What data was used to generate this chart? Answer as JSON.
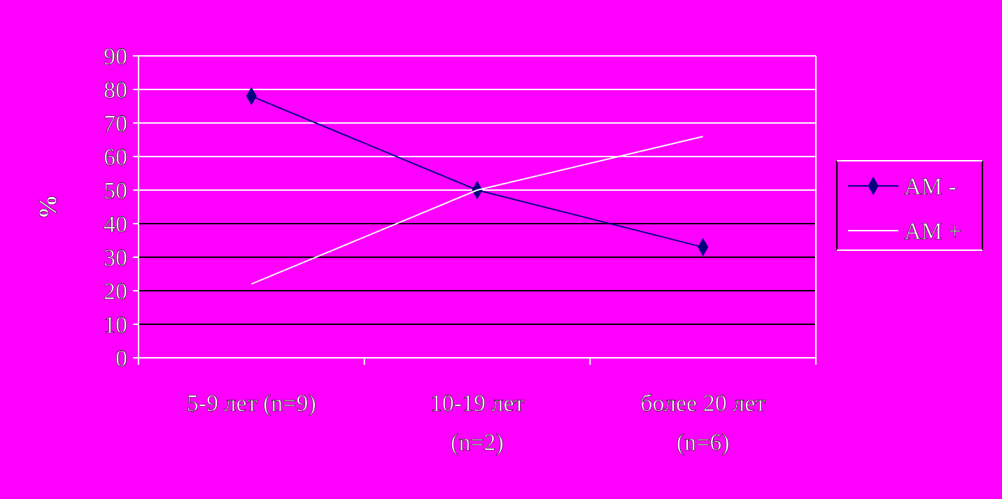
{
  "chart_data": {
    "type": "line",
    "ylabel": "%",
    "categories": [
      "5-9 лет (n=9)",
      "10-19 лет (n=2)",
      "более 20 лет (n=6)"
    ],
    "series": [
      {
        "name": "AM -",
        "color": "#000080",
        "values": [
          78,
          50,
          33
        ],
        "marker": "diamond"
      },
      {
        "name": "AM +",
        "color": "#ffffff",
        "values": [
          22,
          50,
          66
        ],
        "marker": "none"
      }
    ],
    "ylim": [
      0,
      90
    ],
    "yticks": [
      0,
      10,
      20,
      30,
      40,
      50,
      60,
      70,
      80,
      90
    ],
    "grid": "y",
    "legend": "right"
  }
}
